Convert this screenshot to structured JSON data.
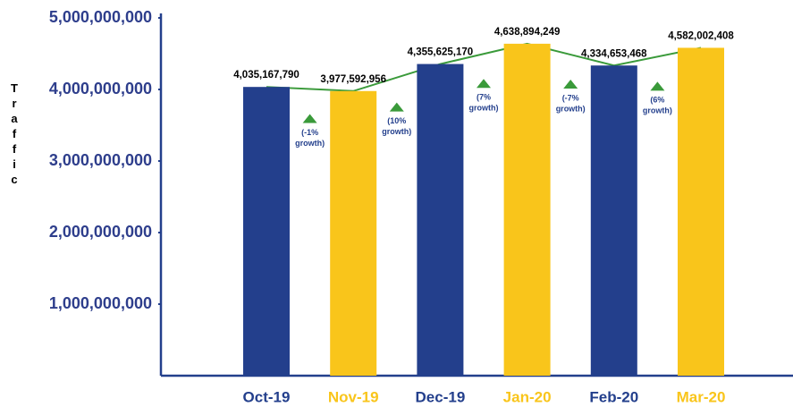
{
  "chart_data": {
    "type": "bar",
    "y_label": "Traffic",
    "categories": [
      "Oct-19",
      "Nov-19",
      "Dec-19",
      "Jan-20",
      "Feb-20",
      "Mar-20"
    ],
    "values": [
      4035167790,
      3977592956,
      4355625170,
      4638894249,
      4334653468,
      4582002408
    ],
    "value_labels": [
      "4,035,167,790",
      "3,977,592,956",
      "4,355,625,170",
      "4,638,894,249",
      "4,334,653,468",
      "4,582,002,408"
    ],
    "colors": [
      "#233f8c",
      "#f9c51b",
      "#233f8c",
      "#f9c51b",
      "#233f8c",
      "#f9c51b"
    ],
    "line_color": "#3a9a3a",
    "annotations": [
      [
        "(-1%",
        "growth)"
      ],
      [
        "(10%",
        "growth)"
      ],
      [
        "(7%",
        "growth)"
      ],
      [
        "(-7%",
        "growth)"
      ],
      [
        "(6%",
        "growth)"
      ]
    ],
    "ylim": [
      0,
      5000000000
    ],
    "yticks": [
      {
        "value": 1000000000,
        "label": "1,000,000,000"
      },
      {
        "value": 2000000000,
        "label": "2,000,000,000"
      },
      {
        "value": 3000000000,
        "label": "3,000,000,000"
      },
      {
        "value": 4000000000,
        "label": "4,000,000,000"
      },
      {
        "value": 5000000000,
        "label": "5,000,000,000"
      }
    ],
    "grid": false
  }
}
